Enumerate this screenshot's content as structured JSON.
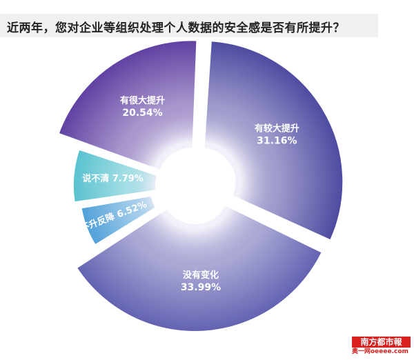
{
  "title": "近两年，您对企业等组织处理个人数据的安全感是否有所提升？",
  "logo": {
    "main": "南方都市報",
    "sub": "奥一网oeeee.com"
  },
  "chart_data": {
    "type": "pie",
    "title": "近两年，您对企业等组织处理个人数据的安全感是否有所提升？",
    "donut": true,
    "slices": [
      {
        "label": "有较大提升",
        "value": 31.16,
        "value_text": "31.16%",
        "color": "#4e4aa1"
      },
      {
        "label": "没有变化",
        "value": 33.99,
        "value_text": "33.99%",
        "color": "#6362b2"
      },
      {
        "label": "不升反降",
        "value": 6.52,
        "value_text": "6.52%",
        "color": "#4fa0d8"
      },
      {
        "label": "说不清",
        "value": 7.79,
        "value_text": "7.79%",
        "color": "#58c2cf"
      },
      {
        "label": "有很大提升",
        "value": 20.54,
        "value_text": "20.54%",
        "color": "#6040a2"
      }
    ]
  }
}
